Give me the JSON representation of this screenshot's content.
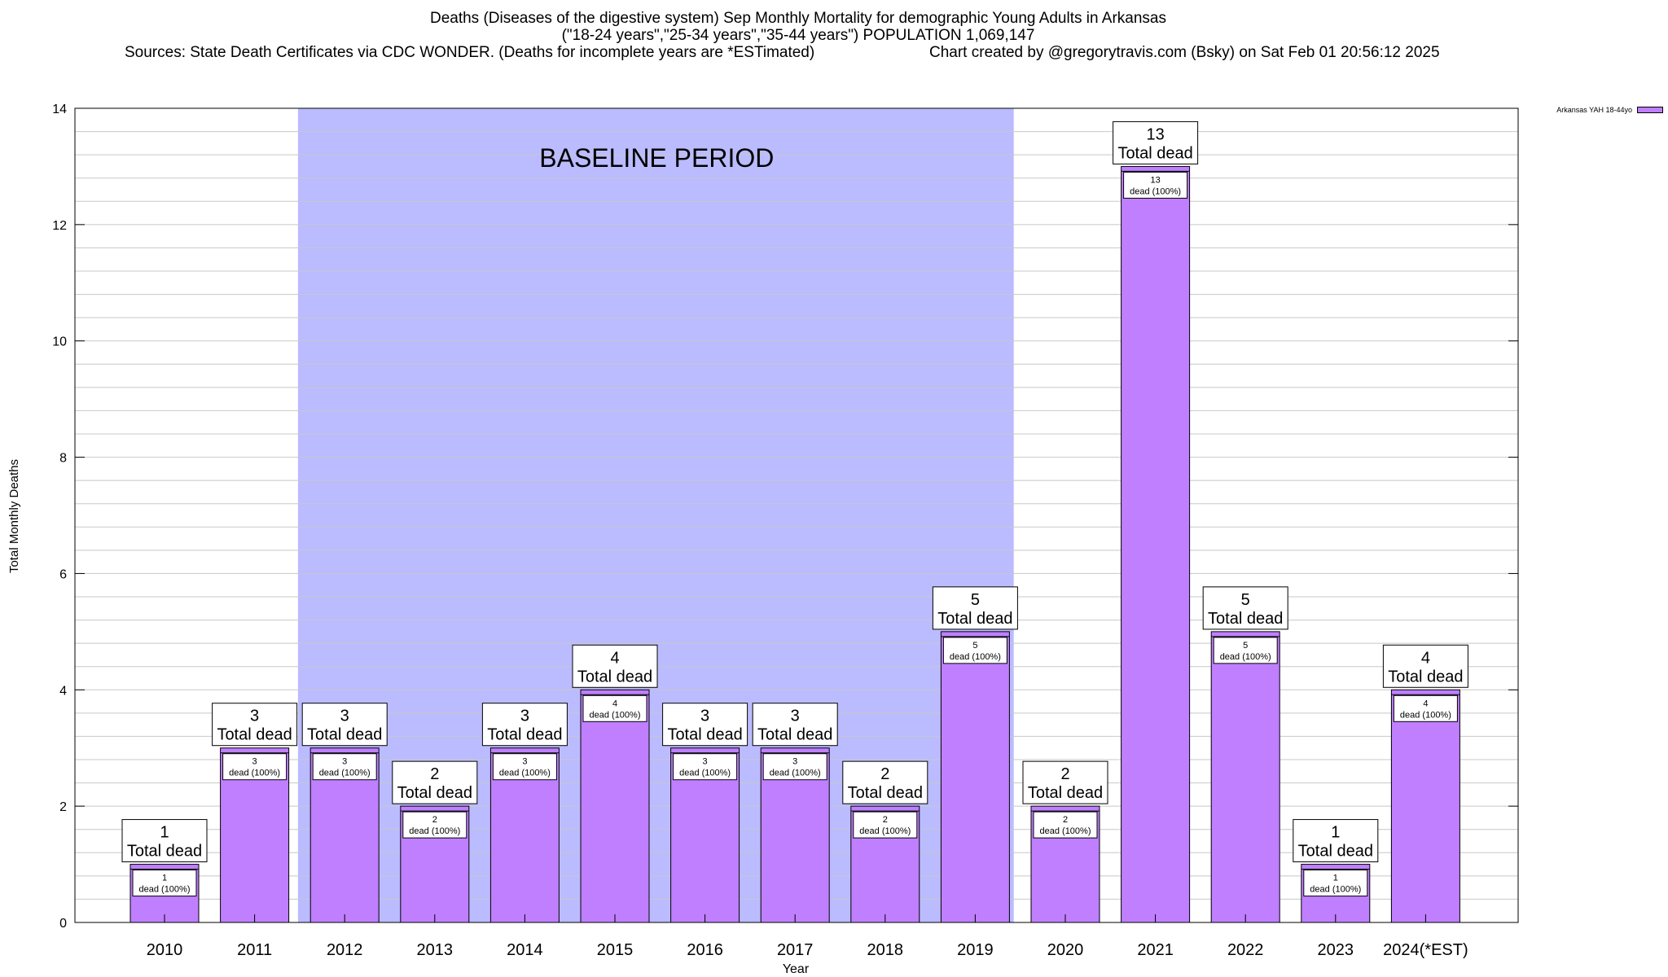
{
  "chart_data": {
    "type": "bar",
    "title": "Deaths (Diseases of the digestive system) Sep Monthly Mortality for demographic Young Adults in Arkansas",
    "subtitle": "(\"18-24 years\",\"25-34 years\",\"35-44 years\") POPULATION 1,069,147",
    "sources": "Sources: State Death Certificates via CDC WONDER. (Deaths for incomplete years are *ESTimated)",
    "credit": "Chart created by @gregorytravis.com (Bsky) on Sat Feb 01 20:56:12 2025",
    "xlabel": "Year",
    "ylabel": "Total Monthly Deaths",
    "ylim": [
      0,
      14
    ],
    "yticks": [
      0,
      2,
      4,
      6,
      8,
      10,
      12,
      14
    ],
    "categories": [
      "2010",
      "2011",
      "2012",
      "2013",
      "2014",
      "2015",
      "2016",
      "2017",
      "2018",
      "2019",
      "2020",
      "2021",
      "2022",
      "2023",
      "2024(*EST)"
    ],
    "series": [
      {
        "name": "Arkansas YAH 18-44yo",
        "values": [
          1,
          3,
          3,
          2,
          3,
          4,
          3,
          3,
          2,
          5,
          2,
          13,
          5,
          1,
          4
        ]
      }
    ],
    "bar_label_suffix": "Total dead",
    "inner_label_suffix": "dead (100%)",
    "baseline": {
      "label": "BASELINE PERIOD",
      "start_category": "2012",
      "end_category": "2019"
    },
    "grid": true,
    "legend_position": "top-right"
  },
  "colors": {
    "bar_fill": "#bf7fff",
    "baseline_fill": "#bbbbff",
    "grid": "#c8c8c8",
    "axis": "#000000"
  }
}
